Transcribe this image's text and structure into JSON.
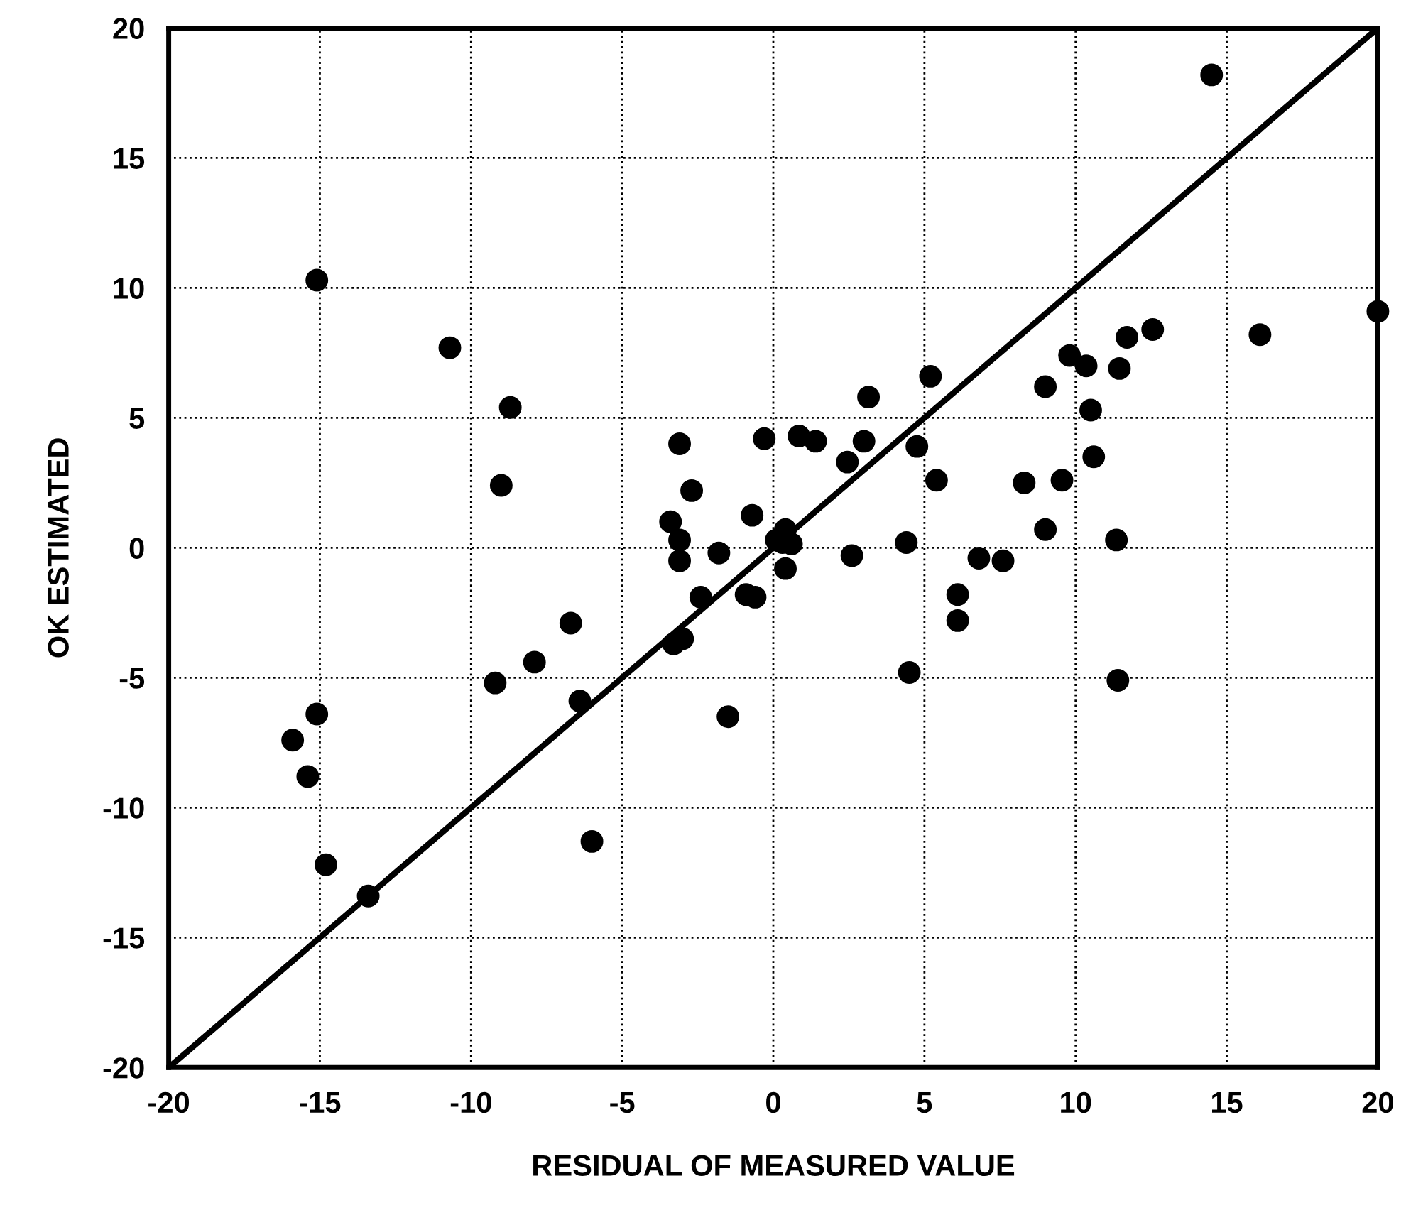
{
  "chart_data": {
    "type": "scatter",
    "xlabel": "RESIDUAL OF MEASURED VALUE",
    "ylabel": "OK ESTIMATED",
    "xlim": [
      -20,
      20
    ],
    "ylim": [
      -20,
      20
    ],
    "xticks": [
      -20,
      -15,
      -10,
      -5,
      0,
      5,
      10,
      15,
      20
    ],
    "yticks": [
      -20,
      -15,
      -10,
      -5,
      0,
      5,
      10,
      15,
      20
    ],
    "grid": true,
    "marker": "circle",
    "series": [
      {
        "color": "#000000",
        "x": [
          14.5,
          -15.1,
          -10.7,
          -8.7,
          -9.0,
          -3.1,
          -2.7,
          -3.4,
          -3.1,
          -3.1,
          -2.4,
          -1.8,
          -0.9,
          -0.6,
          -0.7,
          -0.3,
          0.1,
          0.3,
          0.4,
          0.6,
          0.4,
          0.85,
          1.4,
          -3.3,
          -3.0,
          -1.5,
          2.45,
          2.6,
          3.0,
          3.15,
          4.4,
          4.5,
          4.75,
          5.2,
          5.4,
          6.1,
          6.1,
          6.8,
          7.6,
          8.3,
          9.0,
          9.0,
          9.55,
          9.8,
          10.35,
          10.5,
          10.6,
          11.45,
          11.35,
          11.4,
          11.7,
          12.55,
          16.1,
          20.0,
          -15.9,
          -15.1,
          -15.4,
          -14.8,
          -13.4,
          -9.2,
          -7.9,
          -6.7,
          -6.4,
          -6.0
        ],
        "values": [
          18.2,
          10.3,
          7.7,
          5.4,
          2.4,
          4.0,
          2.2,
          1.0,
          0.3,
          -0.5,
          -1.9,
          -0.2,
          -1.8,
          -1.9,
          1.25,
          4.2,
          0.3,
          0.2,
          0.7,
          0.15,
          -0.8,
          4.3,
          4.1,
          -3.7,
          -3.5,
          -6.5,
          3.3,
          -0.3,
          4.1,
          5.8,
          0.2,
          -4.8,
          3.9,
          6.6,
          2.6,
          -1.8,
          -2.8,
          -0.4,
          -0.5,
          2.5,
          6.2,
          0.7,
          2.6,
          7.4,
          7.0,
          5.3,
          3.5,
          6.9,
          0.3,
          -5.1,
          8.1,
          8.4,
          8.2,
          9.1,
          -7.4,
          -6.4,
          -8.8,
          -12.2,
          -13.4,
          -5.2,
          -4.4,
          -2.9,
          -5.9,
          -11.3
        ]
      },
      {
        "type": "line",
        "color": "#000000",
        "marker": "none",
        "line_style": "solid",
        "x": [
          -20,
          20
        ],
        "values": [
          -20,
          20
        ]
      }
    ]
  }
}
